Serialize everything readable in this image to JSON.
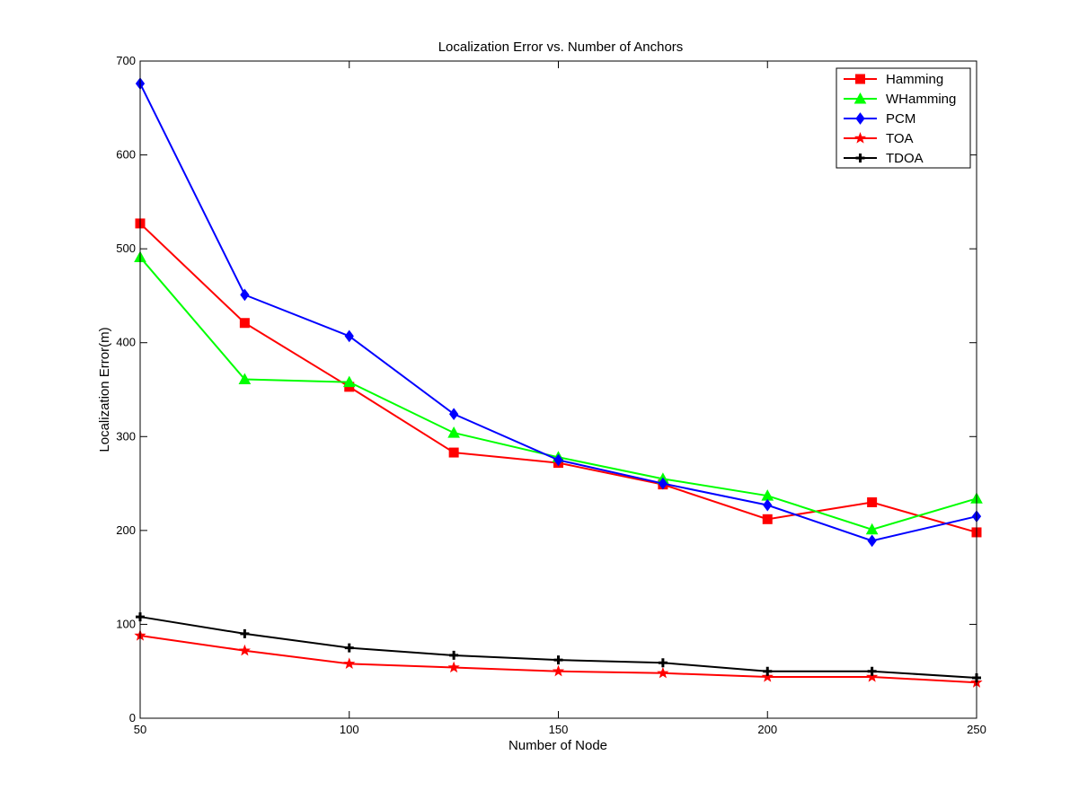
{
  "chart_data": {
    "type": "line",
    "title": "Localization Error vs. Number of Anchors",
    "xlabel": "Number of Node",
    "ylabel": "Localization Error(m)",
    "xlim": [
      50,
      250
    ],
    "ylim": [
      0,
      700
    ],
    "xticks": [
      50,
      100,
      150,
      200,
      250
    ],
    "yticks": [
      0,
      100,
      200,
      300,
      400,
      500,
      600,
      700
    ],
    "grid": false,
    "legend_position": "top-right",
    "x": [
      50,
      75,
      100,
      125,
      150,
      175,
      200,
      225,
      250
    ],
    "series": [
      {
        "name": "Hamming",
        "color": "#ff0000",
        "marker": "square",
        "values": [
          527,
          421,
          353,
          283,
          272,
          249,
          212,
          230,
          198
        ]
      },
      {
        "name": "WHamming",
        "color": "#00ff00",
        "marker": "triangle",
        "values": [
          491,
          361,
          358,
          304,
          278,
          255,
          237,
          201,
          234
        ]
      },
      {
        "name": "PCM",
        "color": "#0000ff",
        "marker": "diamond",
        "values": [
          676,
          451,
          407,
          324,
          275,
          250,
          227,
          189,
          215
        ]
      },
      {
        "name": "TOA",
        "color": "#ff0000",
        "marker": "star",
        "values": [
          88,
          72,
          58,
          54,
          50,
          48,
          44,
          44,
          38
        ]
      },
      {
        "name": "TDOA",
        "color": "#000000",
        "marker": "plus",
        "values": [
          108,
          90,
          75,
          67,
          62,
          59,
          50,
          50,
          43
        ]
      }
    ]
  }
}
